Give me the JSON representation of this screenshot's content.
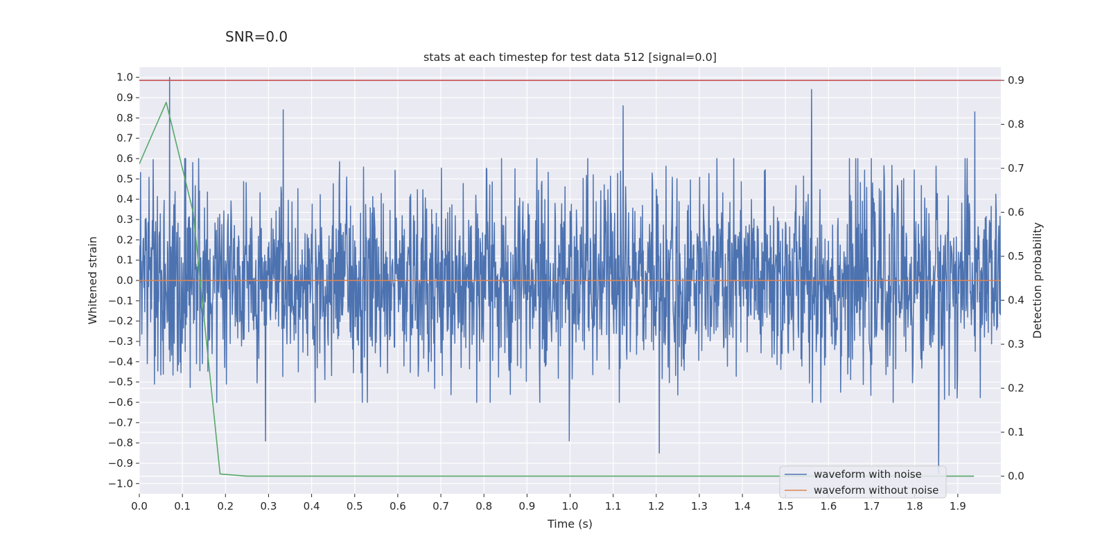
{
  "suptitle": "SNR=0.0",
  "chart_data": {
    "type": "line",
    "title": "stats at each timestep for test data 512 [signal=0.0]",
    "xlabel": "Time (s)",
    "ylabel": "Whitened strain",
    "y2label": "Detection probability",
    "xlim": [
      0.0,
      2.0
    ],
    "ylim": [
      -1.05,
      1.05
    ],
    "y2lim": [
      -0.04,
      0.93
    ],
    "xticks": [
      "0.0",
      "0.1",
      "0.2",
      "0.3",
      "0.4",
      "0.5",
      "0.6",
      "0.7",
      "0.8",
      "0.9",
      "1.0",
      "1.1",
      "1.2",
      "1.3",
      "1.4",
      "1.5",
      "1.6",
      "1.7",
      "1.8",
      "1.9"
    ],
    "yticks": [
      "1.0",
      "0.9",
      "0.8",
      "0.7",
      "0.6",
      "0.5",
      "0.4",
      "0.3",
      "0.2",
      "0.1",
      "0.0",
      "−0.1",
      "−0.2",
      "−0.3",
      "−0.4",
      "−0.5",
      "−0.6",
      "−0.7",
      "−0.8",
      "−0.9",
      "−1.0"
    ],
    "y2ticks": [
      "0.9",
      "0.8",
      "0.7",
      "0.6",
      "0.5",
      "0.4",
      "0.3",
      "0.2",
      "0.1",
      "0.0"
    ],
    "grid": true,
    "legend_placement": "lower-right",
    "series": [
      {
        "name": "waveform with noise",
        "color": "#4c72b0",
        "style": "noise",
        "n_samples": 2048,
        "typical_range": [
          -0.6,
          0.6
        ],
        "peaks": [
          {
            "x": 0.07,
            "y": 1.0
          },
          {
            "x": 0.334,
            "y": 0.84
          },
          {
            "x": 1.123,
            "y": 0.86
          },
          {
            "x": 1.561,
            "y": 0.94
          },
          {
            "x": 1.939,
            "y": 0.83
          },
          {
            "x": 0.293,
            "y": -0.79
          },
          {
            "x": 0.998,
            "y": -0.79
          },
          {
            "x": 1.207,
            "y": -0.85
          },
          {
            "x": 1.855,
            "y": -0.95
          }
        ]
      },
      {
        "name": "waveform without noise",
        "color": "#dd8452",
        "x": [
          0.0,
          2.0
        ],
        "y": [
          0.0,
          0.0
        ]
      },
      {
        "name": "",
        "color": "#55a868",
        "axis": "right",
        "x": [
          0.0,
          0.0625,
          0.125,
          0.1875,
          0.25,
          1.9375
        ],
        "y": [
          0.71,
          0.85,
          0.6,
          0.005,
          0.0,
          0.0
        ]
      },
      {
        "name": "",
        "color": "#c44e52",
        "axis": "right",
        "x": [
          0.0,
          2.0
        ],
        "y": [
          0.9,
          0.9
        ]
      }
    ]
  }
}
